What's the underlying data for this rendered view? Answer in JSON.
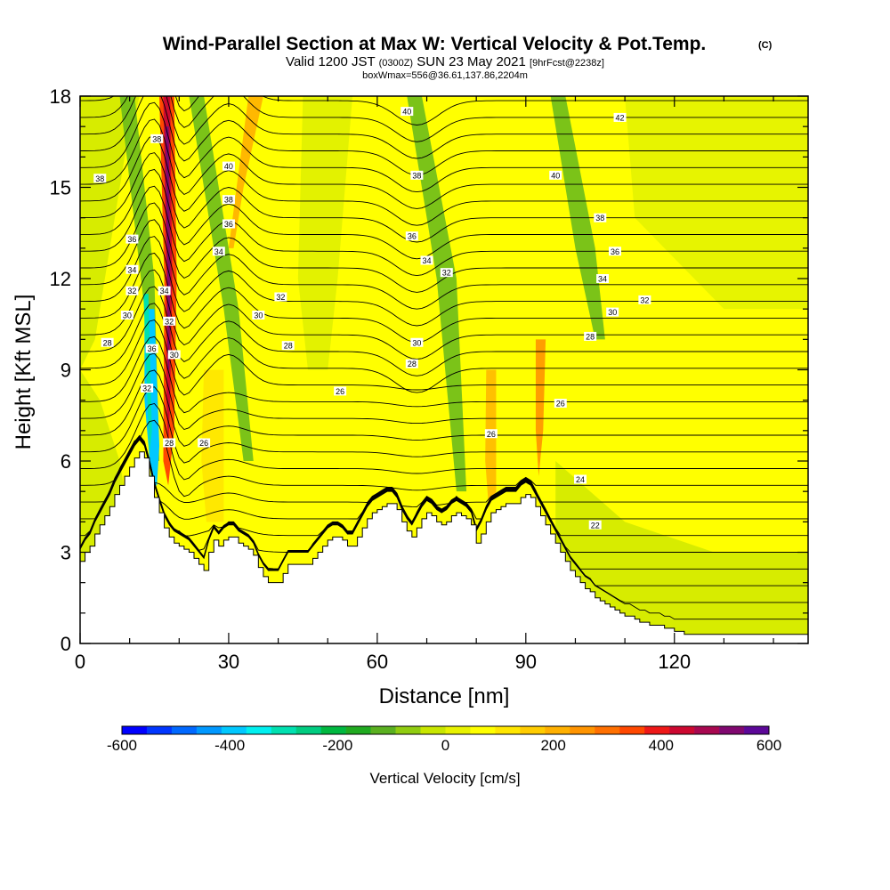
{
  "header": {
    "title": "Wind-Parallel Section at Max W: Vertical Velocity & Pot.Temp.",
    "copyright": "(C)",
    "valid_label": "Valid 1200 JST",
    "valid_utc": "(0300Z)",
    "valid_date": "SUN 23 May 2021",
    "forecast": "[9hrFcst@2238z]",
    "box_info": "boxWmax=556@36.61,137.86,2204m"
  },
  "chart_data": {
    "type": "heatmap",
    "xlabel": "Distance [nm]",
    "ylabel": "Height [Kft MSL]",
    "xlim": [
      0,
      147
    ],
    "ylim": [
      0,
      18
    ],
    "x_ticks": [
      0,
      30,
      60,
      90,
      120
    ],
    "y_ticks": [
      0,
      3,
      6,
      9,
      12,
      15,
      18
    ],
    "colorbar": {
      "label": "Vertical Velocity [cm/s]",
      "range": [
        -600,
        600
      ],
      "tick_values": [
        -600,
        -400,
        -200,
        0,
        200,
        400,
        600
      ],
      "tick_labels": [
        "-600",
        "-400",
        "-200",
        "0",
        "200",
        "400",
        "600"
      ],
      "colors": [
        "#0000ff",
        "#0036ff",
        "#0068ff",
        "#0098ff",
        "#00c8ff",
        "#00f0f0",
        "#00e0b0",
        "#00cc80",
        "#00b840",
        "#20aa20",
        "#5ab020",
        "#90cc10",
        "#c8e600",
        "#e8f200",
        "#ffff00",
        "#ffe600",
        "#ffcc00",
        "#ffb000",
        "#ff9400",
        "#ff7000",
        "#ff4800",
        "#ee1818",
        "#cc0830",
        "#a80850",
        "#800870",
        "#5c0898"
      ]
    },
    "terrain": {
      "x": [
        0,
        1,
        2,
        3,
        4,
        5,
        6,
        7,
        8,
        9,
        10,
        11,
        12,
        13,
        14,
        15,
        16,
        17,
        18,
        19,
        20,
        21,
        22,
        23,
        24,
        25,
        26,
        27,
        28,
        29,
        30,
        31,
        32,
        33,
        34,
        35,
        36,
        37,
        38,
        39,
        40,
        41,
        42,
        43,
        44,
        45,
        46,
        47,
        48,
        49,
        50,
        51,
        52,
        53,
        54,
        55,
        56,
        57,
        58,
        59,
        60,
        61,
        62,
        63,
        64,
        65,
        66,
        67,
        68,
        69,
        70,
        71,
        72,
        73,
        74,
        75,
        76,
        77,
        78,
        79,
        80,
        81,
        82,
        83,
        84,
        85,
        86,
        87,
        88,
        89,
        90,
        91,
        92,
        93,
        94,
        95,
        96,
        97,
        98,
        99,
        100,
        101,
        102,
        103,
        104,
        105,
        106,
        107,
        108,
        109,
        110,
        111,
        112,
        113,
        114,
        115,
        116,
        117,
        118,
        119,
        120,
        121,
        122,
        123,
        124,
        125,
        126,
        127,
        128,
        129,
        130,
        131,
        132,
        133,
        134,
        135,
        136,
        137,
        138,
        139,
        140,
        141,
        142,
        143,
        144,
        145,
        146,
        147
      ],
      "height": [
        2.7,
        3.0,
        3.2,
        3.6,
        3.9,
        4.2,
        4.5,
        4.9,
        5.2,
        5.5,
        5.8,
        6.1,
        6.3,
        6.1,
        5.5,
        4.8,
        4.3,
        3.8,
        3.5,
        3.3,
        3.2,
        3.1,
        3.0,
        2.8,
        2.6,
        2.4,
        3.0,
        3.4,
        3.2,
        3.4,
        3.5,
        3.5,
        3.3,
        3.2,
        3.1,
        2.9,
        2.5,
        2.2,
        2.0,
        2.0,
        2.0,
        2.3,
        2.6,
        2.6,
        2.6,
        2.6,
        2.6,
        2.8,
        3.0,
        3.2,
        3.4,
        3.5,
        3.5,
        3.4,
        3.2,
        3.2,
        3.5,
        3.8,
        4.1,
        4.3,
        4.4,
        4.5,
        4.6,
        4.6,
        4.4,
        4.0,
        3.7,
        3.5,
        3.8,
        4.1,
        4.3,
        4.2,
        4.0,
        3.9,
        4.0,
        4.2,
        4.3,
        4.2,
        4.1,
        3.9,
        3.3,
        3.6,
        4.0,
        4.3,
        4.4,
        4.5,
        4.6,
        4.6,
        4.6,
        4.8,
        4.9,
        4.8,
        4.5,
        4.2,
        3.9,
        3.6,
        3.3,
        3.0,
        2.7,
        2.4,
        2.2,
        2.0,
        1.8,
        1.7,
        1.5,
        1.4,
        1.3,
        1.2,
        1.1,
        1.0,
        0.9,
        0.9,
        0.8,
        0.7,
        0.7,
        0.6,
        0.6,
        0.6,
        0.5,
        0.5,
        0.4,
        0.4,
        0.3,
        0.3,
        0.3,
        0.3,
        0.3,
        0.3,
        0.3,
        0.3,
        0.3,
        0.3,
        0.3,
        0.3,
        0.3,
        0.3,
        0.3,
        0.3,
        0.3,
        0.3,
        0.3,
        0.3,
        0.3,
        0.3,
        0.3,
        0.3,
        0.3,
        0.3,
        0.3,
        0.3
      ]
    },
    "contour_labels": [
      {
        "text": "38",
        "x": 4,
        "y": 15.3
      },
      {
        "text": "36",
        "x": 10.5,
        "y": 13.3
      },
      {
        "text": "34",
        "x": 10.5,
        "y": 12.3
      },
      {
        "text": "32",
        "x": 10.5,
        "y": 11.6
      },
      {
        "text": "30",
        "x": 9.5,
        "y": 10.8
      },
      {
        "text": "28",
        "x": 5.5,
        "y": 9.9
      },
      {
        "text": "38",
        "x": 15.5,
        "y": 16.6
      },
      {
        "text": "34",
        "x": 17,
        "y": 11.6
      },
      {
        "text": "32",
        "x": 18,
        "y": 10.6
      },
      {
        "text": "30",
        "x": 19,
        "y": 9.5
      },
      {
        "text": "36",
        "x": 14.5,
        "y": 9.7
      },
      {
        "text": "32",
        "x": 13.5,
        "y": 8.4
      },
      {
        "text": "28",
        "x": 18,
        "y": 6.6
      },
      {
        "text": "26",
        "x": 25,
        "y": 6.6
      },
      {
        "text": "40",
        "x": 30,
        "y": 15.7
      },
      {
        "text": "38",
        "x": 30,
        "y": 14.6
      },
      {
        "text": "36",
        "x": 30,
        "y": 13.8
      },
      {
        "text": "34",
        "x": 28,
        "y": 12.9
      },
      {
        "text": "32",
        "x": 40.5,
        "y": 11.4
      },
      {
        "text": "30",
        "x": 36,
        "y": 10.8
      },
      {
        "text": "28",
        "x": 42,
        "y": 9.8
      },
      {
        "text": "26",
        "x": 52.5,
        "y": 8.3
      },
      {
        "text": "40",
        "x": 66,
        "y": 17.5
      },
      {
        "text": "38",
        "x": 68,
        "y": 15.4
      },
      {
        "text": "36",
        "x": 67,
        "y": 13.4
      },
      {
        "text": "34",
        "x": 70,
        "y": 12.6
      },
      {
        "text": "32",
        "x": 74,
        "y": 12.2
      },
      {
        "text": "30",
        "x": 68,
        "y": 9.9
      },
      {
        "text": "28",
        "x": 67,
        "y": 9.2
      },
      {
        "text": "26",
        "x": 83,
        "y": 6.9
      },
      {
        "text": "40",
        "x": 96,
        "y": 15.4
      },
      {
        "text": "42",
        "x": 109,
        "y": 17.3
      },
      {
        "text": "38",
        "x": 105,
        "y": 14.0
      },
      {
        "text": "36",
        "x": 108,
        "y": 12.9
      },
      {
        "text": "34",
        "x": 105.5,
        "y": 12.0
      },
      {
        "text": "32",
        "x": 114,
        "y": 11.3
      },
      {
        "text": "30",
        "x": 107.5,
        "y": 10.9
      },
      {
        "text": "28",
        "x": 103,
        "y": 10.1
      },
      {
        "text": "26",
        "x": 97,
        "y": 7.9
      },
      {
        "text": "24",
        "x": 101,
        "y": 5.4
      },
      {
        "text": "22",
        "x": 104,
        "y": 3.9
      }
    ]
  }
}
